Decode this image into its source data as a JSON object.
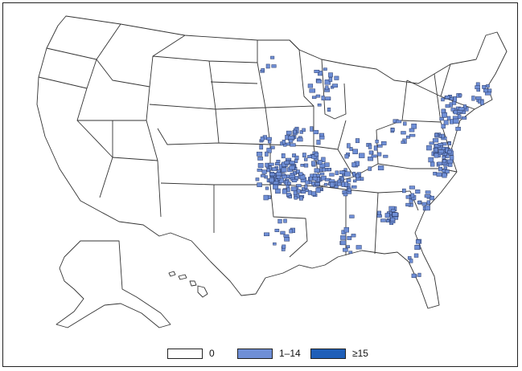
{
  "legend": {
    "items": [
      {
        "label": "0",
        "color": "#ffffff"
      },
      {
        "label": "1–14",
        "color": "#6f8fd6"
      },
      {
        "label": "≥15",
        "color": "#1f5fb8"
      }
    ]
  },
  "colors": {
    "outline": "#333333",
    "county_fill": "#6f8fd6",
    "county_stroke": "#2a3a66"
  }
}
